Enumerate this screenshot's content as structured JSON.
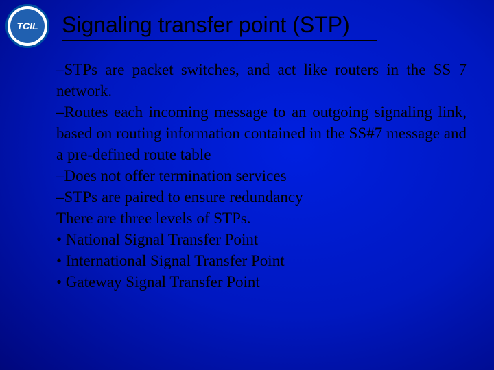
{
  "logo": {
    "text": "TCIL"
  },
  "title": "Signaling transfer point (STP)",
  "lines": {
    "l1": "–STPs are packet switches, and act like routers in the SS 7 network.",
    "l2": "–Routes each incoming message to an outgoing signaling link, based on routing information contained in the SS#7 message and a pre-defined route table",
    "l3": "–Does not offer termination services",
    "l4": "–STPs are paired to ensure redundancy",
    "l5": "There are three levels of STPs.",
    "l6": "• National Signal Transfer Point",
    "l7": "• International Signal Transfer Point",
    "l8": "• Gateway Signal Transfer Point"
  },
  "style": {
    "title_fontsize": 32,
    "body_fontsize": 23,
    "title_color": "#000000",
    "body_color": "#000000",
    "bg_gradient_inner": "#0020e0",
    "bg_gradient_outer": "#000020",
    "logo_bg": "#ffffff",
    "logo_inner_bg": "#2060b0",
    "logo_border": "#0050a0"
  }
}
